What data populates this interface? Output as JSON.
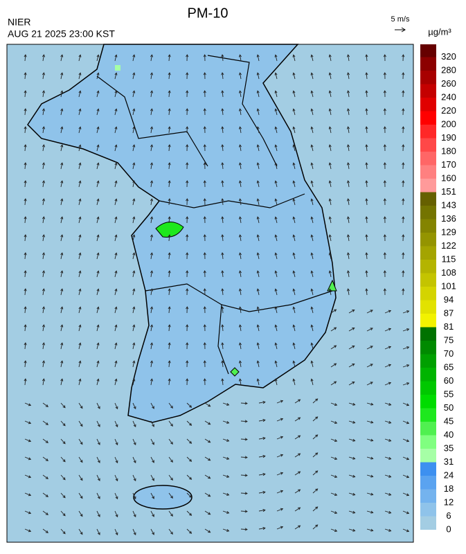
{
  "header": {
    "title": "PM-10",
    "agency": "NIER",
    "timestamp": "AUG 21 2025 23:00 KST",
    "wind_scale": "5 m/s"
  },
  "legend": {
    "unit": "µg/m³",
    "ticks": [
      0,
      6,
      12,
      18,
      24,
      31,
      35,
      40,
      45,
      50,
      55,
      60,
      65,
      70,
      75,
      81,
      87,
      94,
      101,
      108,
      115,
      122,
      129,
      136,
      143,
      151,
      160,
      170,
      180,
      190,
      200,
      220,
      240,
      260,
      280,
      320
    ],
    "colors": [
      "#a3cde3",
      "#8fc3ea",
      "#74b3ee",
      "#5aa3f0",
      "#3d90f0",
      "#a6ffa6",
      "#80ff80",
      "#50f050",
      "#1ee81e",
      "#00dc00",
      "#00c800",
      "#00b400",
      "#00a000",
      "#008a00",
      "#007200",
      "#f2f200",
      "#e2e200",
      "#d4d400",
      "#c4c400",
      "#b4b400",
      "#a4a400",
      "#949400",
      "#848400",
      "#747400",
      "#666000",
      "#ff9a9a",
      "#ff8080",
      "#ff6666",
      "#ff4848",
      "#ff2828",
      "#ff0000",
      "#e00000",
      "#c40000",
      "#a80000",
      "#8c0000",
      "#660000"
    ]
  }
}
